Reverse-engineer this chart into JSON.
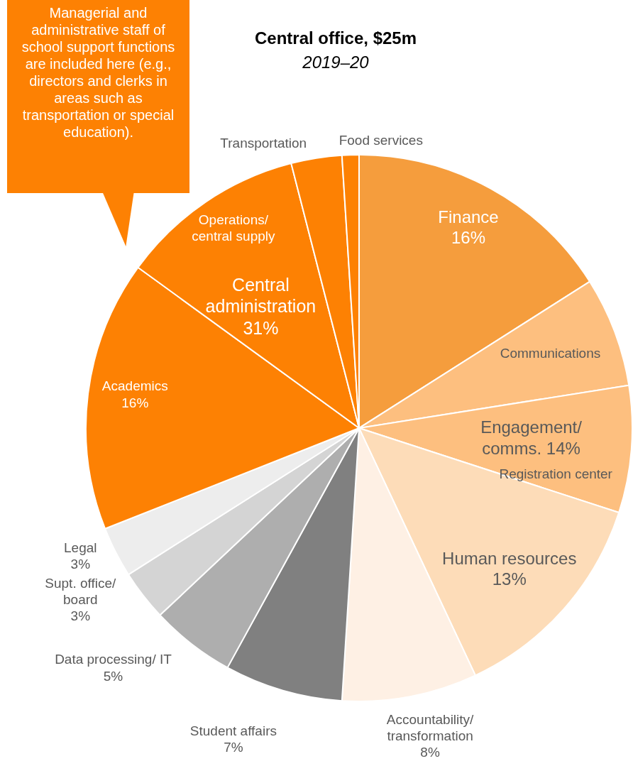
{
  "chart_data": {
    "type": "pie",
    "title": "Central office, $25m",
    "subtitle": "2019–20",
    "categories": [
      "Finance",
      "Communications",
      "Registration center",
      "Human resources",
      "Accountability/ transformation",
      "Student affairs",
      "Data processing/ IT",
      "Supt. office/ board",
      "Legal",
      "Academics",
      "Operations/ central supply",
      "Transportation",
      "Food services"
    ],
    "values": [
      16,
      6.5,
      7.5,
      13,
      8,
      7,
      5,
      3,
      3,
      16,
      11,
      3,
      1
    ],
    "colors": [
      "#f59d3d",
      "#fdbf7f",
      "#fdbf7f",
      "#fddcb8",
      "#fef0e4",
      "#808080",
      "#aeaeae",
      "#d4d4d4",
      "#ededed",
      "#fd8103",
      "#fd8103",
      "#fd8103",
      "#fd8103"
    ],
    "value_labels": [
      "16%",
      null,
      null,
      "13%",
      "8%",
      "7%",
      "5%",
      "3%",
      "3%",
      "16%",
      null,
      null,
      null
    ],
    "annotations": [
      "Managerial and administrative staff of school support functions are included here (e.g., directors and clerks in areas such as transportation or special education).",
      "Engagement/ comms. 14%",
      "Central administration 31%"
    ],
    "legend": false
  }
}
